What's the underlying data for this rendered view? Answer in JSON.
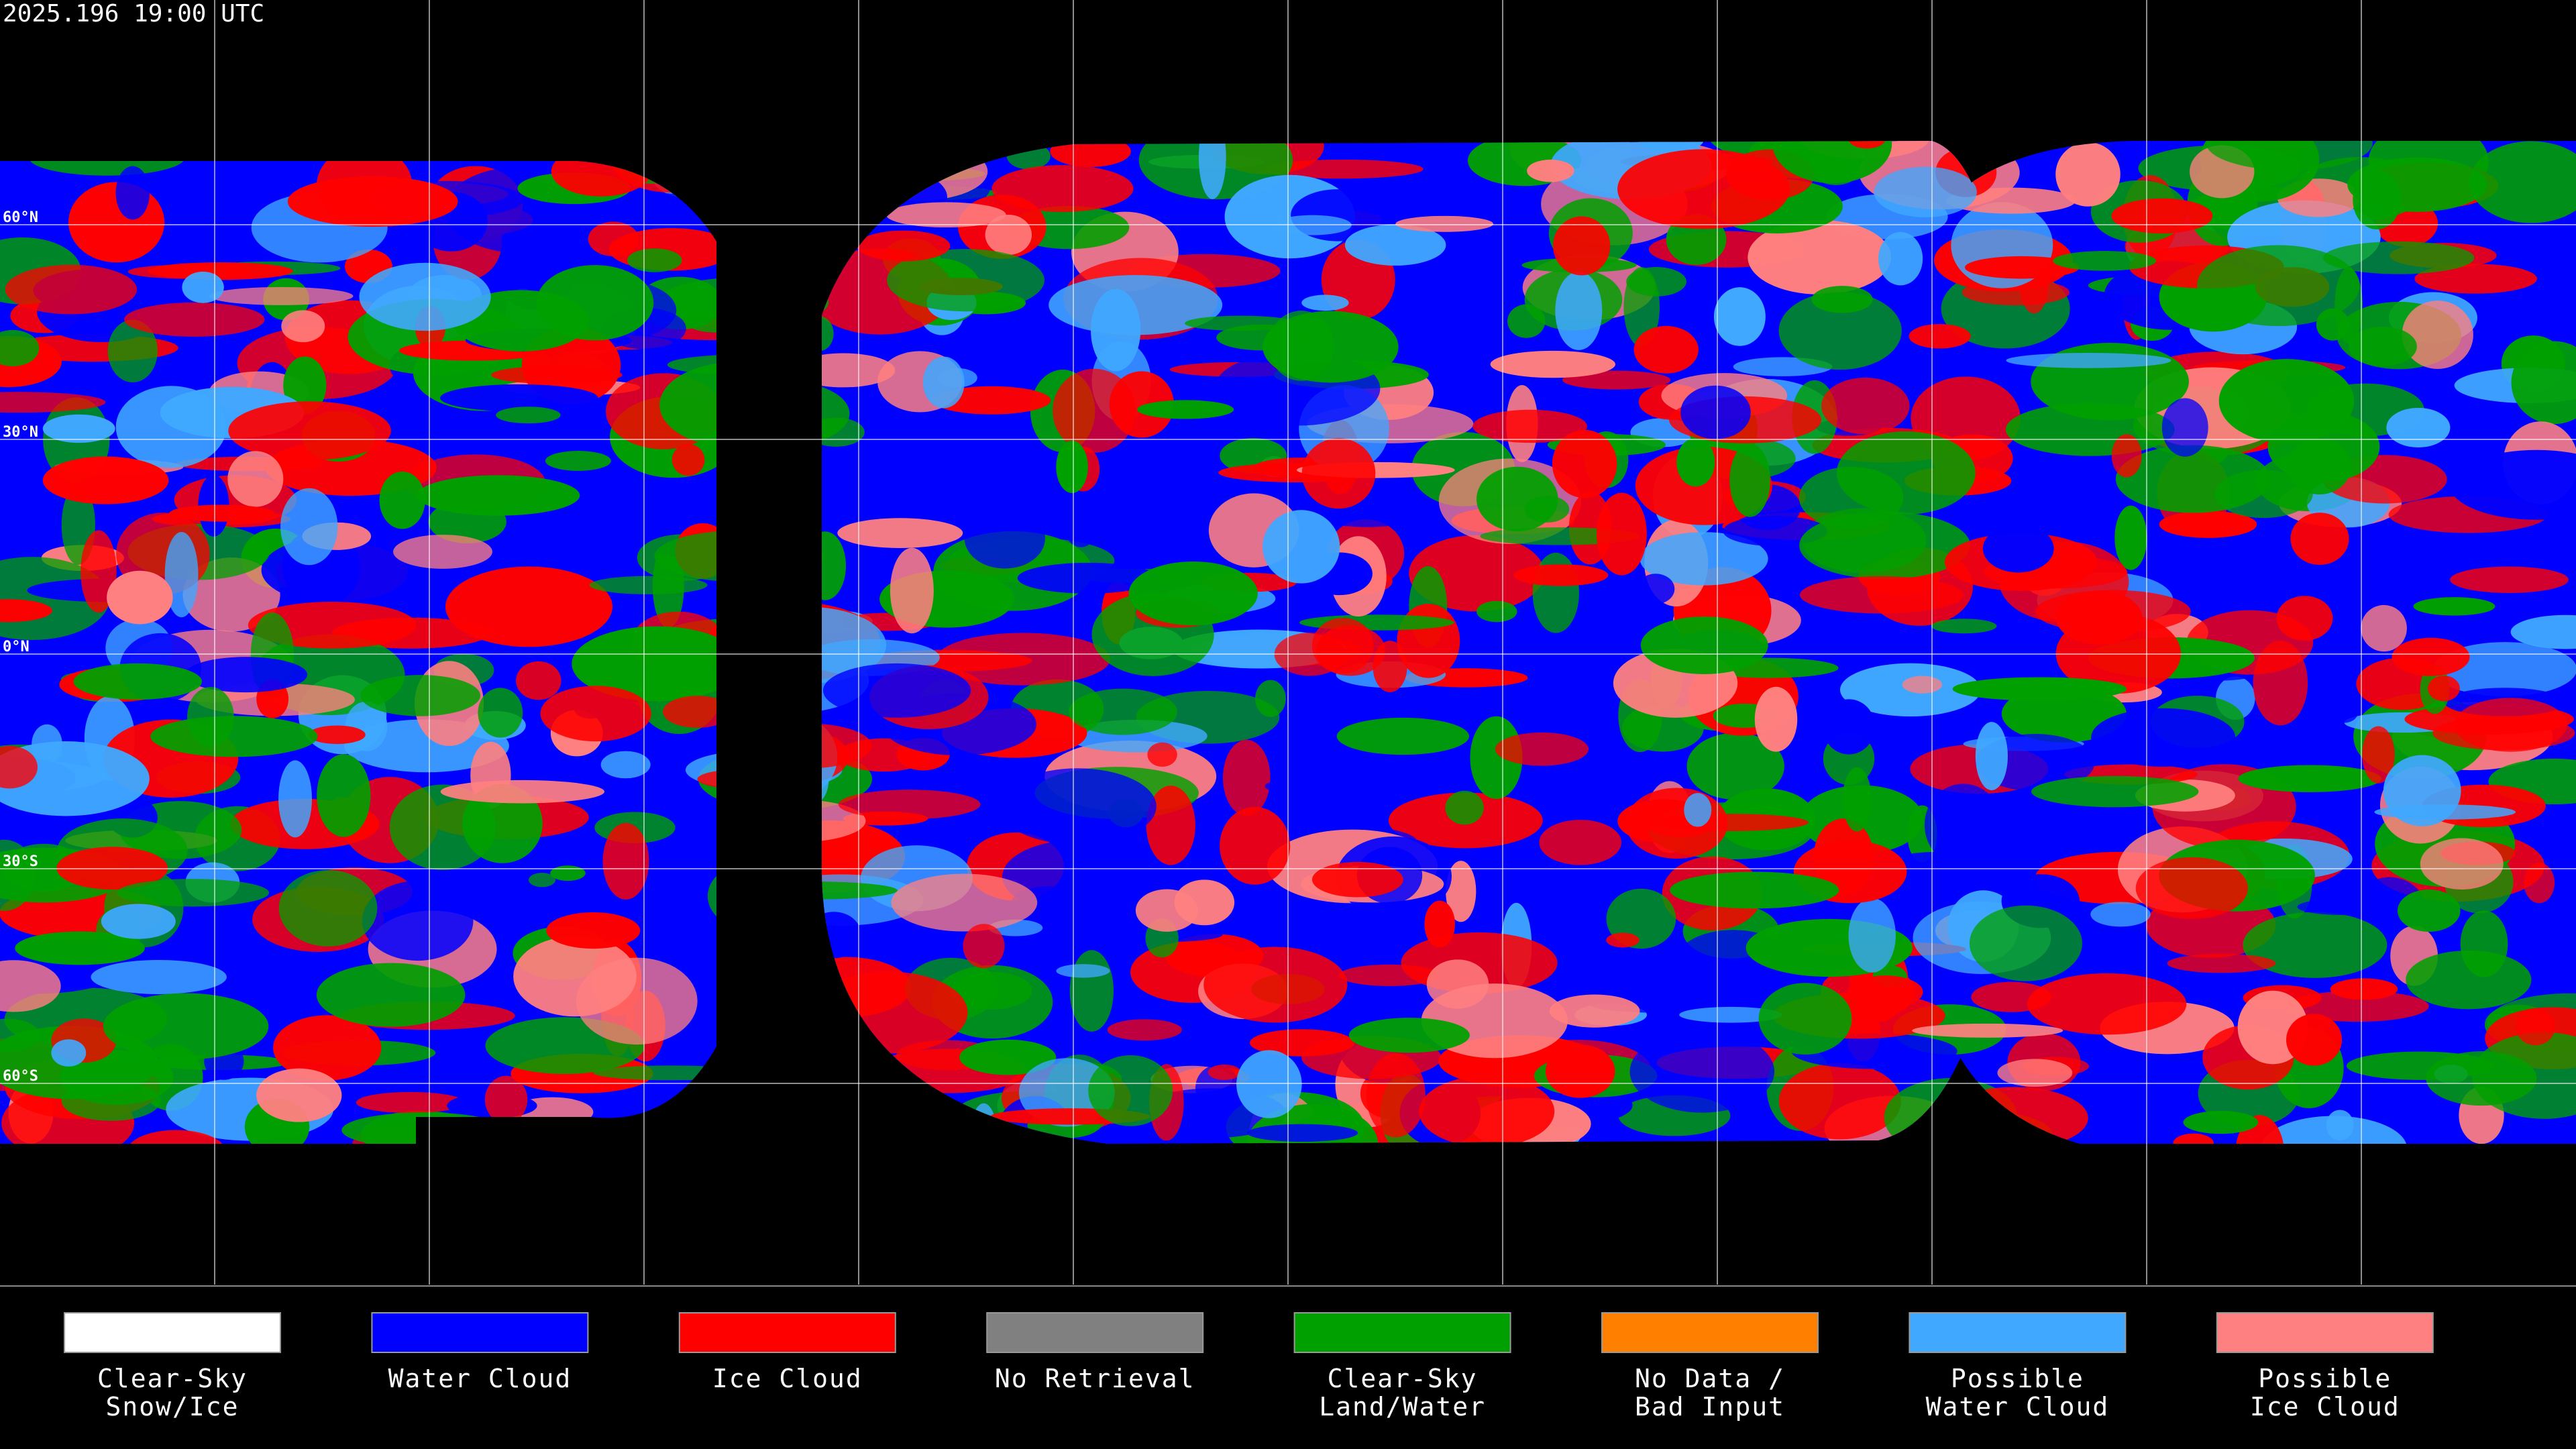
{
  "timestamp": "2025.196 19:00 UTC",
  "latitude_labels": [
    "60°N",
    "30°N",
    "0°N",
    "30°S",
    "60°S"
  ],
  "legend": [
    {
      "lines": [
        "Clear-Sky",
        "Snow/Ice"
      ],
      "color": "#ffffff"
    },
    {
      "lines": [
        "Water Cloud"
      ],
      "color": "#0000ff"
    },
    {
      "lines": [
        "Ice Cloud"
      ],
      "color": "#ff0000"
    },
    {
      "lines": [
        "No Retrieval"
      ],
      "color": "#808080"
    },
    {
      "lines": [
        "Clear-Sky",
        "Land/Water"
      ],
      "color": "#00a000"
    },
    {
      "lines": [
        "No Data /",
        "Bad Input"
      ],
      "color": "#ff8000"
    },
    {
      "lines": [
        "Possible",
        "Water Cloud"
      ],
      "color": "#40a8ff"
    },
    {
      "lines": [
        "Possible",
        "Ice Cloud"
      ],
      "color": "#ff8080"
    }
  ]
}
